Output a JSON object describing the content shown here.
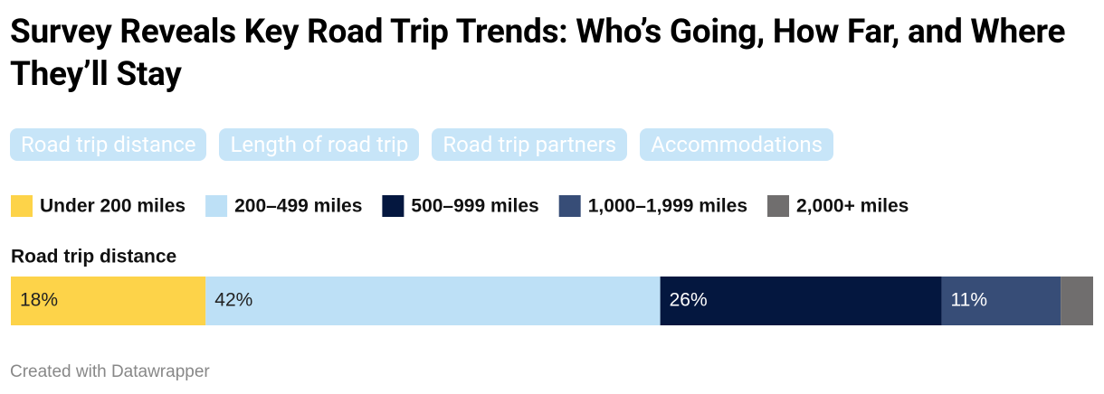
{
  "tabs": [
    "Road trip distance",
    "Length of road trip",
    "Road trip partners",
    "Accommodations"
  ],
  "chart_data": {
    "type": "stacked-bar",
    "title": "Survey Reveals Key Road Trip Trends: Who’s Going, How Far, and Where They’ll Stay",
    "categories": [
      "Road trip distance"
    ],
    "xlim": [
      0,
      100
    ],
    "series": [
      {
        "name": "Under 200 miles",
        "color": "#fdd349",
        "values": [
          18
        ],
        "value_labels": [
          "18%"
        ]
      },
      {
        "name": "200–499 miles",
        "color": "#bde0f6",
        "values": [
          42
        ],
        "value_labels": [
          "42%"
        ]
      },
      {
        "name": "500–999 miles",
        "color": "#04173f",
        "values": [
          26
        ],
        "value_labels": [
          "26%"
        ]
      },
      {
        "name": "1,000–1,999 miles",
        "color": "#374d77",
        "values": [
          11
        ],
        "value_labels": [
          "11%"
        ]
      },
      {
        "name": "2,000+ miles",
        "color": "#706e6e",
        "values": [
          3
        ]
      }
    ],
    "credit": "Created with Datawrapper"
  }
}
